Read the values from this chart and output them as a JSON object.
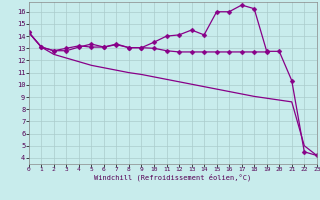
{
  "xlabel": "Windchill (Refroidissement éolien,°C)",
  "background_color": "#c8ecec",
  "line_color": "#880088",
  "xlim": [
    0,
    23
  ],
  "ylim": [
    3.5,
    16.8
  ],
  "xticks": [
    0,
    1,
    2,
    3,
    4,
    5,
    6,
    7,
    8,
    9,
    10,
    11,
    12,
    13,
    14,
    15,
    16,
    17,
    18,
    19,
    20,
    21,
    22,
    23
  ],
  "yticks": [
    4,
    5,
    6,
    7,
    8,
    9,
    10,
    11,
    12,
    13,
    14,
    15,
    16
  ],
  "curve1_x": [
    0,
    1,
    2,
    3,
    4,
    5,
    6,
    7,
    8,
    9,
    10,
    11,
    12,
    13,
    14,
    15,
    16,
    17,
    18,
    19,
    20,
    21,
    22,
    23
  ],
  "curve1_y": [
    14.3,
    13.1,
    12.8,
    12.8,
    13.1,
    13.35,
    13.1,
    13.35,
    13.05,
    13.05,
    13.5,
    14.0,
    14.1,
    14.5,
    14.1,
    16.0,
    16.0,
    16.55,
    16.25,
    12.75,
    12.75,
    10.35,
    4.5,
    4.2
  ],
  "curve2_x": [
    0,
    1,
    2,
    3,
    4,
    5,
    6,
    7,
    8,
    9,
    10,
    11,
    12,
    13,
    14,
    15,
    16,
    17,
    18,
    19
  ],
  "curve2_y": [
    14.3,
    13.1,
    12.8,
    13.0,
    13.2,
    13.1,
    13.1,
    13.3,
    13.05,
    13.05,
    13.0,
    12.8,
    12.7,
    12.7,
    12.7,
    12.7,
    12.7,
    12.7,
    12.7,
    12.7
  ],
  "curve3_x": [
    0,
    1,
    2,
    3,
    4,
    5,
    6,
    7,
    8,
    9,
    10,
    11,
    12,
    13,
    14,
    15,
    16,
    17,
    18,
    19,
    20,
    21,
    22,
    23
  ],
  "curve3_y": [
    14.3,
    13.1,
    12.5,
    12.2,
    11.9,
    11.6,
    11.4,
    11.2,
    11.0,
    10.85,
    10.65,
    10.45,
    10.25,
    10.05,
    9.85,
    9.65,
    9.45,
    9.25,
    9.05,
    8.9,
    8.75,
    8.6,
    5.0,
    4.2
  ],
  "markersize": 2.5,
  "linewidth": 0.9
}
